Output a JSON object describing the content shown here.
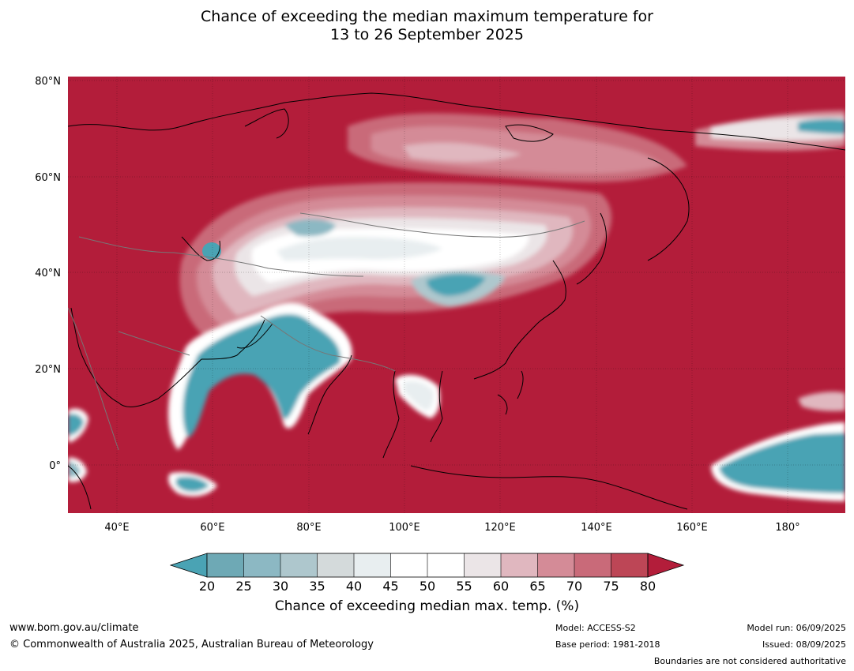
{
  "title": {
    "line1": "Chance of exceeding the median maximum temperature for",
    "line2": "13 to 26 September 2025"
  },
  "map": {
    "lat_labels": [
      "80°N",
      "60°N",
      "40°N",
      "20°N",
      "0°"
    ],
    "lon_labels": [
      "40°E",
      "60°E",
      "80°E",
      "100°E",
      "120°E",
      "140°E",
      "160°E",
      "180°"
    ],
    "colors": {
      "ocean_high": "#b31d3a",
      "c20": "#4aa3b4",
      "c25": "#6ea9b5",
      "c30": "#8cb8c3",
      "c35": "#aec7cd",
      "c40": "#d4dadb",
      "c45": "#e8eef0",
      "c50": "#ffffff",
      "c55": "#ffffff",
      "c60": "#ebe5e7",
      "c65": "#e0b7bf",
      "c70": "#d48b97",
      "c75": "#c96a79",
      "c80": "#bd4656"
    }
  },
  "colorbar": {
    "ticks": [
      "20",
      "25",
      "30",
      "35",
      "40",
      "45",
      "50",
      "55",
      "60",
      "65",
      "70",
      "75",
      "80"
    ],
    "title": "Chance of exceeding median max. temp. (%)"
  },
  "footer": {
    "url": "www.bom.gov.au/climate",
    "copyright": "© Commonwealth of Australia 2025, Australian Bureau of Meteorology",
    "model": "Model: ACCESS-S2",
    "base_period": "Base period: 1981-2018",
    "model_run": "Model run: 06/09/2025",
    "issued": "Issued: 08/09/2025",
    "boundaries": "Boundaries are not considered authoritative"
  }
}
